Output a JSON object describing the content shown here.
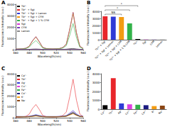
{
  "chart_data": [
    {
      "title": "A",
      "type": "line",
      "x_label": "Wavelength(nm)",
      "y_label": "Fluorescence Intensity (a.u.)",
      "x": [
        460,
        465,
        470,
        475,
        480,
        485,
        490,
        495,
        500,
        505,
        510,
        515,
        520,
        525,
        530,
        535,
        540,
        545,
        550,
        555,
        560
      ],
      "xlim": [
        460,
        560
      ],
      "xticks": [
        460,
        480,
        500,
        520,
        540,
        560
      ],
      "ylim": [
        0,
        4000
      ],
      "yticks": [
        0,
        1000,
        2000,
        3000,
        4000
      ],
      "grid": false,
      "legend": "left",
      "series": [
        {
          "name": "Tb³⁺",
          "color": "#000000",
          "values": [
            20,
            20,
            20,
            25,
            30,
            50,
            60,
            45,
            25,
            20,
            20,
            20,
            20,
            25,
            30,
            45,
            80,
            100,
            60,
            30,
            20
          ]
        },
        {
          "name": "Tb³⁺ + Sgt",
          "color": "#e8262b",
          "values": [
            50,
            60,
            80,
            120,
            300,
            800,
            1150,
            700,
            200,
            100,
            80,
            70,
            80,
            100,
            200,
            500,
            1800,
            3300,
            1500,
            300,
            100
          ]
        },
        {
          "name": "Tb³⁺ + Sgt + Lemon",
          "color": "#2f3bd6",
          "values": [
            50,
            60,
            80,
            120,
            290,
            780,
            1130,
            690,
            200,
            100,
            80,
            70,
            80,
            100,
            190,
            490,
            1770,
            3250,
            1480,
            290,
            100
          ]
        },
        {
          "name": "Tb³⁺ + Sgt + CFM",
          "color": "#f39c12",
          "values": [
            50,
            60,
            75,
            115,
            280,
            760,
            1100,
            670,
            190,
            95,
            75,
            65,
            75,
            95,
            185,
            480,
            1740,
            3200,
            1450,
            280,
            95
          ]
        },
        {
          "name": "Tb³⁺ + Sgt + 1 % CFM",
          "color": "#33b24a",
          "values": [
            40,
            50,
            60,
            90,
            210,
            550,
            800,
            490,
            140,
            70,
            60,
            50,
            60,
            70,
            140,
            350,
            1250,
            2300,
            1050,
            210,
            70
          ]
        },
        {
          "name": "Sgt",
          "color": "#d63ad6",
          "values": [
            30,
            30,
            30,
            30,
            30,
            30,
            30,
            30,
            30,
            30,
            30,
            30,
            30,
            30,
            30,
            30,
            30,
            30,
            30,
            30,
            30
          ]
        },
        {
          "name": "CFM",
          "color": "#7b3fb8",
          "values": [
            20,
            20,
            20,
            20,
            20,
            20,
            20,
            20,
            20,
            20,
            20,
            20,
            20,
            20,
            20,
            20,
            20,
            20,
            20,
            20,
            20
          ]
        },
        {
          "name": "Lemon",
          "color": "#888888",
          "values": [
            20,
            20,
            20,
            20,
            20,
            20,
            20,
            20,
            20,
            20,
            20,
            20,
            20,
            20,
            20,
            20,
            20,
            20,
            20,
            20,
            20
          ]
        }
      ]
    },
    {
      "title": "B",
      "type": "bar",
      "y_label": "Fluorescence Intensity (a.u.)",
      "categories": [
        "Tb³⁺ + Sgt",
        "Tb³⁺ + Sgt + Lemon",
        "Tb³⁺ + Sgt + CFM",
        "Tb³⁺ + Sgt + 1 % CFM",
        "Tb³⁺",
        "Sgt",
        "CFM",
        "Lemon"
      ],
      "values": [
        3300,
        3250,
        3200,
        2300,
        100,
        30,
        20,
        20
      ],
      "colors": [
        "#e8262b",
        "#2f3bd6",
        "#f39c12",
        "#33b24a",
        "#000000",
        "#d63ad6",
        "#7b3fb8",
        "#888888"
      ],
      "ylim": [
        0,
        4000
      ],
      "yticks": [
        0,
        1000,
        2000,
        3000,
        4000
      ],
      "grid": false,
      "annotations": [
        {
          "text": "NS",
          "between": [
            "Tb³⁺ + Sgt",
            "Tb³⁺ + Sgt + CFM"
          ]
        },
        {
          "text": "*",
          "between": [
            "Tb³⁺ + Sgt",
            "Tb³⁺ + Sgt + 1 % CFM"
          ]
        },
        {
          "text": "*",
          "between": [
            "Tb³⁺ + Sgt",
            "Tb³⁺"
          ]
        }
      ]
    },
    {
      "title": "C",
      "type": "line",
      "x_label": "Wavelength(nm)",
      "y_label": "Fluorescence Intensity (a.u.)",
      "x": [
        460,
        465,
        470,
        475,
        480,
        485,
        490,
        495,
        500,
        505,
        510,
        515,
        520,
        525,
        530,
        535,
        540,
        545,
        550,
        555,
        560
      ],
      "xlim": [
        460,
        560
      ],
      "xticks": [
        460,
        480,
        500,
        520,
        540,
        560
      ],
      "ylim": [
        0,
        4000
      ],
      "yticks": [
        0,
        1000,
        2000,
        3000,
        4000
      ],
      "grid": false,
      "legend": "left",
      "series": [
        {
          "name": "Ca²⁺",
          "color": "#000000",
          "values": [
            100,
            90,
            90,
            90,
            100,
            150,
            200,
            150,
            100,
            90,
            90,
            90,
            90,
            100,
            110,
            150,
            300,
            450,
            250,
            120,
            100
          ]
        },
        {
          "name": "Tb³⁺",
          "color": "#e8262b",
          "values": [
            50,
            60,
            80,
            120,
            320,
            850,
            1200,
            750,
            210,
            100,
            80,
            70,
            80,
            100,
            210,
            520,
            1900,
            3500,
            1600,
            320,
            100
          ]
        },
        {
          "name": "Ag⁺",
          "color": "#2f3bd6",
          "values": [
            120,
            110,
            110,
            110,
            130,
            200,
            280,
            200,
            130,
            110,
            110,
            110,
            110,
            120,
            140,
            200,
            420,
            650,
            360,
            150,
            120
          ]
        },
        {
          "name": "Cu²⁺",
          "color": "#e040e0",
          "values": [
            110,
            100,
            100,
            100,
            120,
            180,
            240,
            170,
            120,
            100,
            100,
            100,
            100,
            110,
            130,
            180,
            360,
            550,
            310,
            140,
            110
          ]
        },
        {
          "name": "Fe³⁺",
          "color": "#33b24a",
          "values": [
            100,
            95,
            95,
            95,
            110,
            160,
            220,
            160,
            110,
            95,
            95,
            95,
            95,
            105,
            120,
            160,
            330,
            500,
            280,
            130,
            100
          ]
        },
        {
          "name": "Co²⁺",
          "color": "#1a1a80",
          "values": [
            90,
            85,
            85,
            85,
            100,
            140,
            190,
            140,
            100,
            85,
            85,
            85,
            85,
            95,
            110,
            150,
            300,
            450,
            250,
            120,
            90
          ]
        },
        {
          "name": "K⁺",
          "color": "#f39c12",
          "values": [
            80,
            75,
            75,
            75,
            85,
            110,
            150,
            110,
            85,
            75,
            75,
            75,
            75,
            80,
            95,
            120,
            240,
            350,
            200,
            100,
            80
          ]
        },
        {
          "name": "Na⁺",
          "color": "#8b4513",
          "values": [
            85,
            80,
            80,
            80,
            90,
            125,
            170,
            125,
            90,
            80,
            80,
            80,
            80,
            88,
            100,
            135,
            270,
            400,
            225,
            110,
            85
          ]
        }
      ]
    },
    {
      "title": "D",
      "type": "bar",
      "y_label": "Fluorescence Intensity (a.u.)",
      "categories": [
        "Ca²⁺",
        "Tb³⁺",
        "Ag⁺",
        "Cu²⁺",
        "Fe³⁺",
        "Co²⁺",
        "K⁺",
        "Na⁺"
      ],
      "values": [
        450,
        3500,
        650,
        550,
        500,
        450,
        350,
        400
      ],
      "colors": [
        "#000000",
        "#e8262b",
        "#2f3bd6",
        "#e040e0",
        "#33b24a",
        "#1a1a80",
        "#f39c12",
        "#8b4513"
      ],
      "ylim": [
        0,
        4000
      ],
      "yticks": [
        0,
        1000,
        2000,
        3000,
        4000
      ],
      "grid": false
    }
  ]
}
